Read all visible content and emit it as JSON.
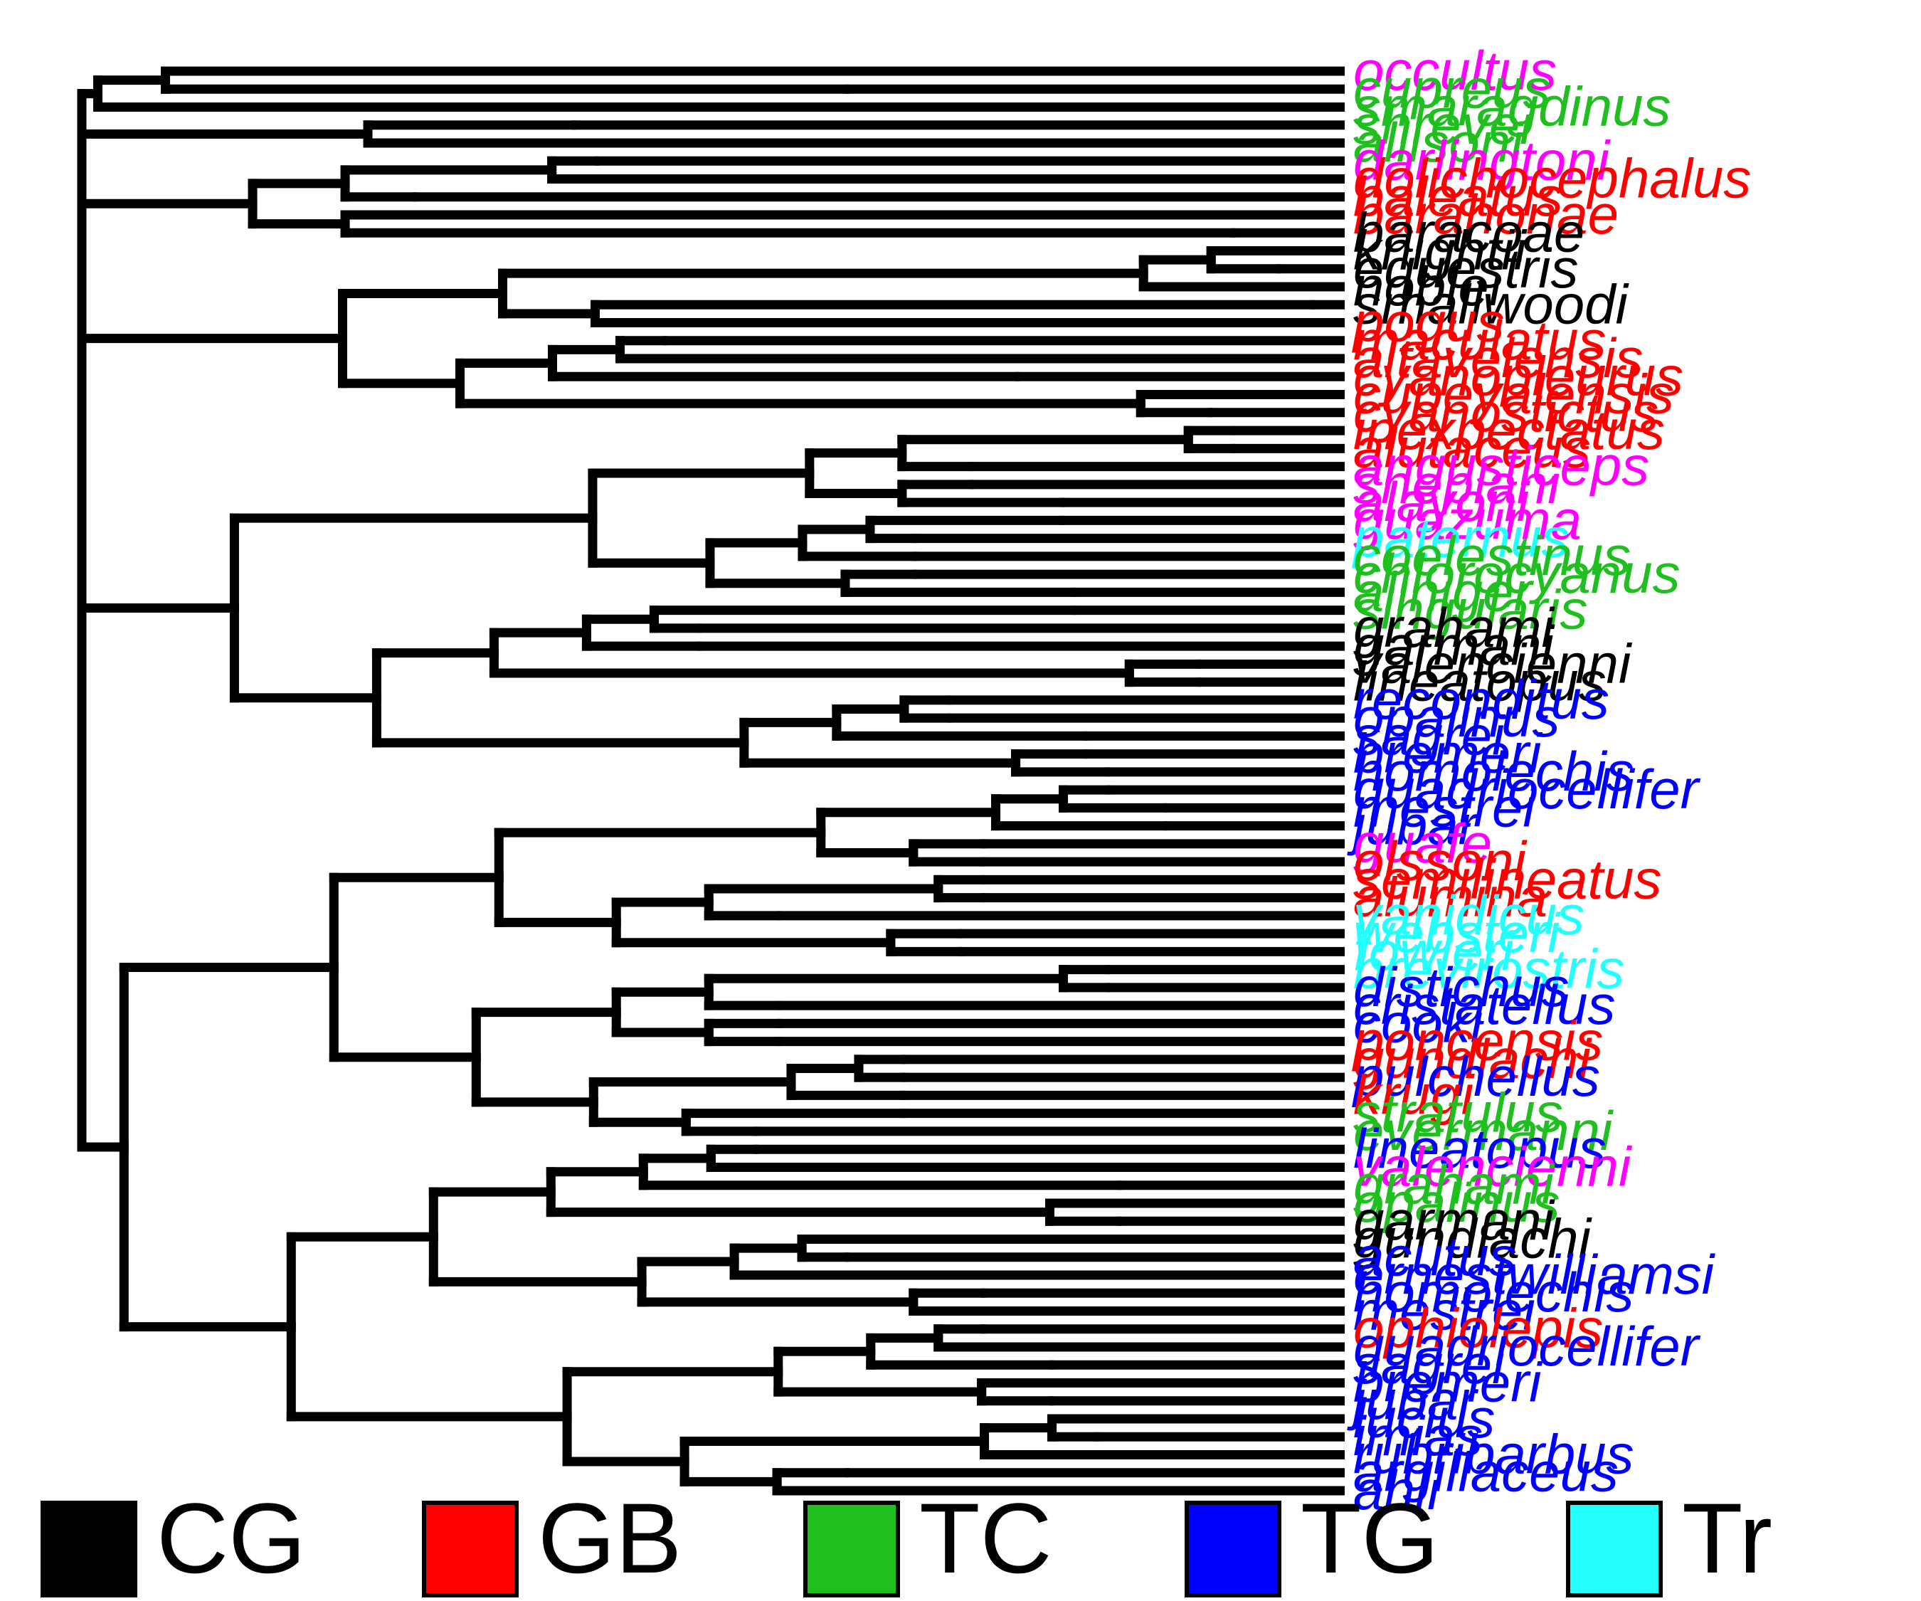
{
  "diagram": {
    "type": "phylogenetic-tree",
    "tips": [
      {
        "label": "occultus",
        "group": "Cu",
        "depth": 1.0
      },
      {
        "label": "cupreus",
        "group": "TC",
        "depth": 0.44
      },
      {
        "label": "smaragdinus",
        "group": "TC",
        "depth": 0.68
      },
      {
        "label": "shrevei",
        "group": "TC",
        "depth": 0.68
      },
      {
        "label": "allisoni",
        "group": "TC",
        "depth": 0.8
      },
      {
        "label": "darlingtoni",
        "group": "Cu",
        "depth": 0.66
      },
      {
        "label": "dolichocephalus",
        "group": "GB",
        "depth": 0.66
      },
      {
        "label": "baleatus",
        "group": "GB",
        "depth": 0.82
      },
      {
        "label": "barahonae",
        "group": "GB",
        "depth": 0.82
      },
      {
        "label": "baracoae",
        "group": "CG",
        "depth": 0.1
      },
      {
        "label": "knightii",
        "group": "CG",
        "depth": 0.08
      },
      {
        "label": "equestris",
        "group": "CG",
        "depth": 0.06
      },
      {
        "label": "noblei",
        "group": "CG",
        "depth": 0.03
      },
      {
        "label": "smallwoodi",
        "group": "CG",
        "depth": 0.03
      },
      {
        "label": "pogus",
        "group": "GB",
        "depth": 0.6
      },
      {
        "label": "maculatus",
        "group": "GB",
        "depth": 0.6
      },
      {
        "label": "altavelensis",
        "group": "GB",
        "depth": 0.29
      },
      {
        "label": "cyanopleurus",
        "group": "GB",
        "depth": 0.29
      },
      {
        "label": "cupeyalensis",
        "group": "GB",
        "depth": 0.12
      },
      {
        "label": "cyanostictus",
        "group": "GB",
        "depth": 0.12
      },
      {
        "label": "inexpectatus",
        "group": "GB",
        "depth": 0.1
      },
      {
        "label": "alutaceus",
        "group": "GB",
        "depth": 0.1
      },
      {
        "label": "angusticeps",
        "group": "Cu",
        "depth": 0.33
      },
      {
        "label": "sheplani",
        "group": "Cu",
        "depth": 0.33
      },
      {
        "label": "alayoni",
        "group": "Cu",
        "depth": 0.25
      },
      {
        "label": "guazuma",
        "group": "Cu",
        "depth": 0.25
      },
      {
        "label": "paternus",
        "group": "Tr",
        "depth": 0.38
      },
      {
        "label": "coelestinus",
        "group": "TC",
        "depth": 0.38
      },
      {
        "label": "chlorocyanus",
        "group": "TC",
        "depth": 0.38
      },
      {
        "label": "aliniger",
        "group": "TC",
        "depth": 0.24
      },
      {
        "label": "singularis",
        "group": "TC",
        "depth": 0.24
      },
      {
        "label": "grahami",
        "group": "CG",
        "depth": 0.57
      },
      {
        "label": "garmani",
        "group": "CG",
        "depth": 0.57
      },
      {
        "label": "valencienni",
        "group": "CG",
        "depth": 0.13
      },
      {
        "label": "lineatopus",
        "group": "CG",
        "depth": 0.13
      },
      {
        "label": "reconditus",
        "group": "TG",
        "depth": 0.35
      },
      {
        "label": "opalinus",
        "group": "TG",
        "depth": 0.35
      },
      {
        "label": "sagrei",
        "group": "TG",
        "depth": 0.23
      },
      {
        "label": "bremeri",
        "group": "TG",
        "depth": 0.23
      },
      {
        "label": "homolechis",
        "group": "TG",
        "depth": 0.21
      },
      {
        "label": "quadriocellifer",
        "group": "TG",
        "depth": 0.21
      },
      {
        "label": "mestrei",
        "group": "TG",
        "depth": 0.16
      },
      {
        "label": "jubar",
        "group": "TG",
        "depth": 0.16
      },
      {
        "label": "guafe",
        "group": "Cu",
        "depth": 0.32
      },
      {
        "label": "olssoni",
        "group": "GB",
        "depth": 0.32
      },
      {
        "label": "semilineatus",
        "group": "GB",
        "depth": 0.32
      },
      {
        "label": "alumina",
        "group": "GB",
        "depth": 0.32
      },
      {
        "label": "vanidicus",
        "group": "Tr",
        "depth": 0.5
      },
      {
        "label": "websteri",
        "group": "Tr",
        "depth": 0.34
      },
      {
        "label": "fowleri",
        "group": "Tr",
        "depth": 0.34
      },
      {
        "label": "brevirostris",
        "group": "Tr",
        "depth": 0.21
      },
      {
        "label": "distichus",
        "group": "TG",
        "depth": 0.21
      },
      {
        "label": "cristatellus",
        "group": "TG",
        "depth": 0.5
      },
      {
        "label": "cooki",
        "group": "TG",
        "depth": 0.5
      },
      {
        "label": "poncensis",
        "group": "GB",
        "depth": 0.5
      },
      {
        "label": "gundlachi",
        "group": "GB",
        "depth": 0.39
      },
      {
        "label": "pulchellus",
        "group": "TG",
        "depth": 0.39
      },
      {
        "label": "krugi",
        "group": "GB",
        "depth": 0.39
      },
      {
        "label": "stratulus",
        "group": "TC",
        "depth": 0.39
      },
      {
        "label": "evermanni",
        "group": "TC",
        "depth": 0.52
      },
      {
        "label": "lineatopus",
        "group": "TG",
        "depth": 0.52
      },
      {
        "label": "valencienni",
        "group": "Cu",
        "depth": 0.52
      },
      {
        "label": "grahami",
        "group": "TC",
        "depth": 0.2
      },
      {
        "label": "opalinus",
        "group": "TC",
        "depth": 0.2
      },
      {
        "label": "garmani",
        "group": "CG",
        "depth": 0.2
      },
      {
        "label": "gundlachi",
        "group": "CG",
        "depth": 0.2
      },
      {
        "label": "acutus",
        "group": "TG",
        "depth": 0.44
      },
      {
        "label": "ernestwilliamsi",
        "group": "TG",
        "depth": 0.44
      },
      {
        "label": "homolechis",
        "group": "TG",
        "depth": 0.32
      },
      {
        "label": "mestrei",
        "group": "TG",
        "depth": 0.32
      },
      {
        "label": "ophiolepis",
        "group": "GB",
        "depth": 0.32
      },
      {
        "label": "quadriocellifer",
        "group": "TG",
        "depth": 0.26
      },
      {
        "label": "sagrei",
        "group": "TG",
        "depth": 0.26
      },
      {
        "label": "bremeri",
        "group": "TG",
        "depth": 0.26
      },
      {
        "label": "jubar",
        "group": "TG",
        "depth": 0.26
      },
      {
        "label": "lucius",
        "group": "TG",
        "depth": 0.22
      },
      {
        "label": "imias",
        "group": "TG",
        "depth": 0.22
      },
      {
        "label": "rubribarbus",
        "group": "TG",
        "depth": 0.22
      },
      {
        "label": "argillaceus",
        "group": "TG",
        "depth": 0.44
      },
      {
        "label": "ahli",
        "group": "TG",
        "depth": 0.44
      }
    ]
  },
  "legend": {
    "items": [
      {
        "key": "CG",
        "label": "CG",
        "color": "#000000"
      },
      {
        "key": "GB",
        "label": "GB",
        "color": "#ff0000"
      },
      {
        "key": "TC",
        "label": "TC",
        "color": "#1fbf1f"
      },
      {
        "key": "TG",
        "label": "TG",
        "color": "#0000ff"
      },
      {
        "key": "Tr",
        "label": "Tr",
        "color": "#22ffff"
      }
    ],
    "extra_colors": {
      "Cu": "#ff00ff"
    }
  }
}
